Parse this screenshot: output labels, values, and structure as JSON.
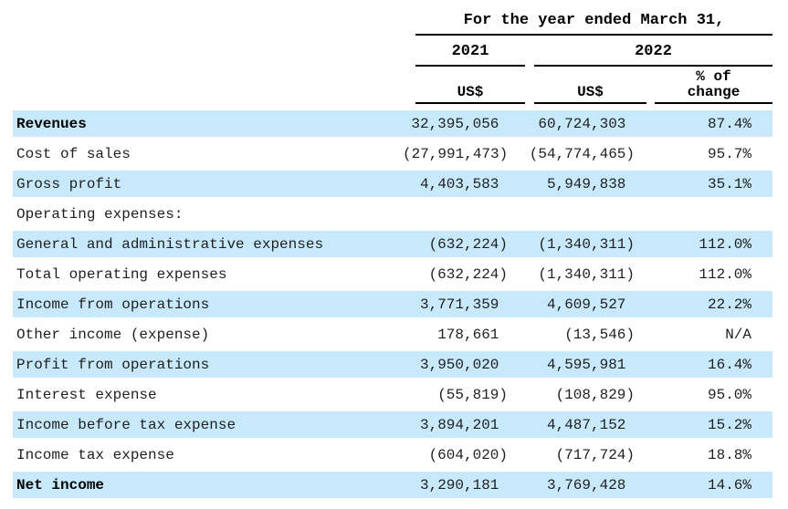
{
  "header": {
    "period": "For the year ended March 31,",
    "year_2021": "2021",
    "year_2022": "2022",
    "currency_2021": "US$",
    "currency_2022": "US$",
    "pct_change_line1": "% of",
    "pct_change_line2": "change"
  },
  "colors": {
    "row_highlight": "#c7e9fb",
    "rule": "#000000"
  },
  "rows": [
    {
      "label": "Revenues",
      "y2021": "32,395,056 ",
      "y2022": "60,724,303 ",
      "pct": "87.4%"
    },
    {
      "label": "Cost of sales",
      "y2021": "(27,991,473)",
      "y2022": "(54,774,465)",
      "pct": "95.7%"
    },
    {
      "label": "Gross profit",
      "y2021": "4,403,583 ",
      "y2022": "5,949,838 ",
      "pct": "35.1%"
    },
    {
      "label": "Operating expenses:",
      "y2021": "",
      "y2022": "",
      "pct": ""
    },
    {
      "label": "General and administrative expenses",
      "y2021": "(632,224)",
      "y2022": "(1,340,311)",
      "pct": "112.0%"
    },
    {
      "label": "Total operating expenses",
      "y2021": "(632,224)",
      "y2022": "(1,340,311)",
      "pct": "112.0%"
    },
    {
      "label": "Income from operations",
      "y2021": "3,771,359 ",
      "y2022": "4,609,527 ",
      "pct": "22.2%"
    },
    {
      "label": "Other income (expense)",
      "y2021": "178,661 ",
      "y2022": "(13,546)",
      "pct": "N/A"
    },
    {
      "label": "Profit from operations",
      "y2021": "3,950,020 ",
      "y2022": "4,595,981 ",
      "pct": "16.4%"
    },
    {
      "label": "Interest expense",
      "y2021": "(55,819)",
      "y2022": "(108,829)",
      "pct": "95.0%"
    },
    {
      "label": "Income before tax expense",
      "y2021": "3,894,201 ",
      "y2022": "4,487,152 ",
      "pct": "15.2%"
    },
    {
      "label": "Income tax expense",
      "y2021": "(604,020)",
      "y2022": "(717,724)",
      "pct": "18.8%"
    },
    {
      "label": "Net income",
      "y2021": "3,290,181 ",
      "y2022": "3,769,428 ",
      "pct": "14.6%"
    }
  ]
}
